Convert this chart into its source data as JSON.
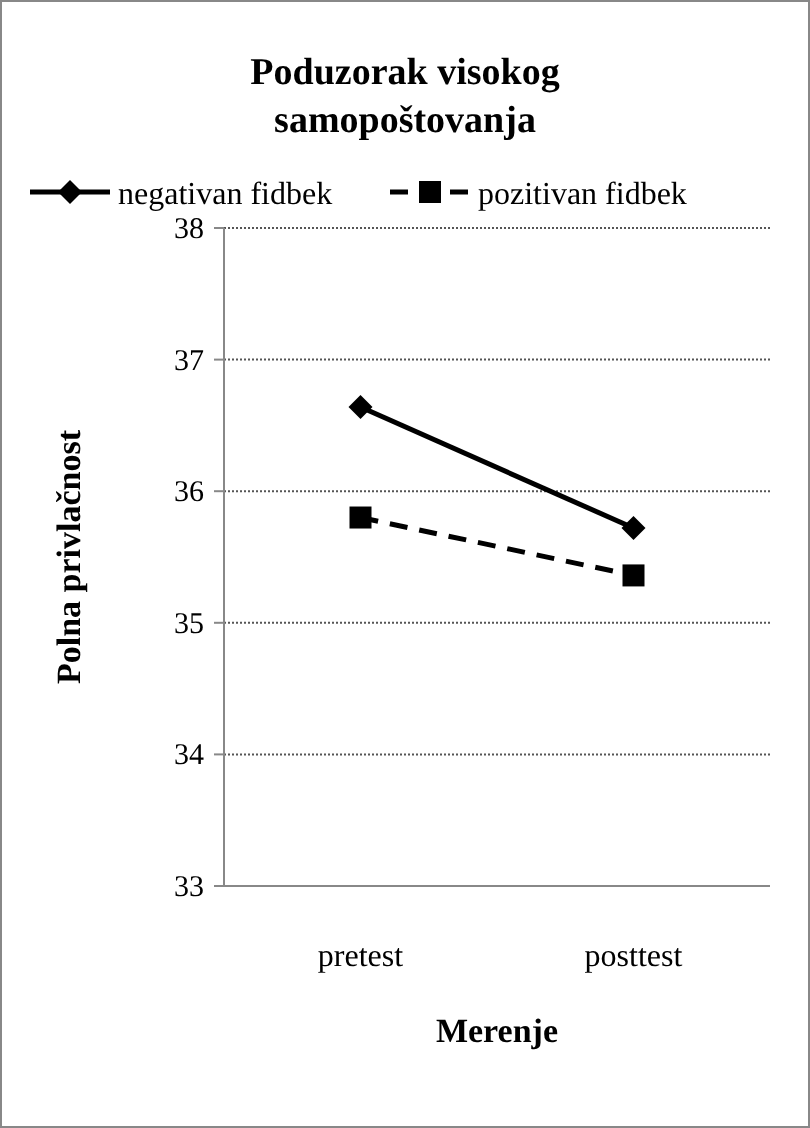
{
  "chart_data": {
    "type": "line",
    "title": "Poduzorak visokog samopoštovanja",
    "xlabel": "Merenje",
    "ylabel": "Polna privlačnost",
    "categories": [
      "pretest",
      "posttest"
    ],
    "ylim": [
      33,
      38
    ],
    "yticks": [
      33,
      34,
      35,
      36,
      37,
      38
    ],
    "grid": "y",
    "legend": "top",
    "series": [
      {
        "name": "negativan fidbek",
        "color": "#000000",
        "values": [
          36.64,
          35.72
        ],
        "marker": "diamond",
        "line_style": "solid"
      },
      {
        "name": "pozitivan fidbek",
        "color": "#000000",
        "values": [
          35.8,
          35.36
        ],
        "marker": "square",
        "line_style": "dashed"
      }
    ]
  }
}
